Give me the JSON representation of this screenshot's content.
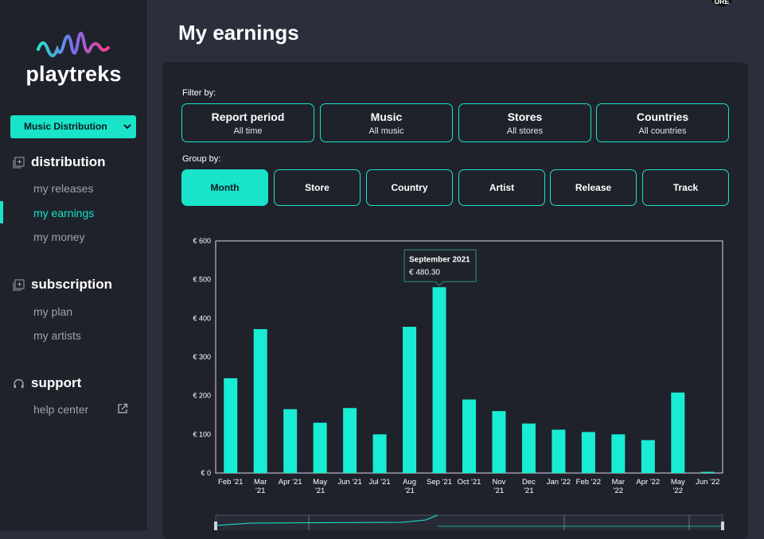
{
  "brand": {
    "name": "playtreks"
  },
  "sidebar": {
    "selector": "Music Distribution",
    "sections": [
      {
        "title": "distribution",
        "items": [
          "my releases",
          "my earnings",
          "my money"
        ]
      },
      {
        "title": "subscription",
        "items": [
          "my plan",
          "my artists"
        ]
      },
      {
        "title": "support",
        "items": [
          "help center"
        ]
      }
    ],
    "active_item": "my earnings"
  },
  "avatar_text": "URE",
  "page": {
    "title": "My earnings",
    "filter_label": "Filter by:",
    "filters": [
      {
        "title": "Report period",
        "value": "All time"
      },
      {
        "title": "Music",
        "value": "All music"
      },
      {
        "title": "Stores",
        "value": "All stores"
      },
      {
        "title": "Countries",
        "value": "All countries"
      }
    ],
    "group_label": "Group by:",
    "groups": [
      "Month",
      "Store",
      "Country",
      "Artist",
      "Release",
      "Track"
    ],
    "active_group": "Month"
  },
  "colors": {
    "accent": "#19e3c9",
    "sidebar_bg": "#1f222b",
    "page_bg": "#2b2f3c"
  },
  "chart_data": {
    "type": "bar",
    "categories": [
      [
        "Feb '21"
      ],
      [
        "Mar",
        "'21"
      ],
      [
        "Apr '21"
      ],
      [
        "May",
        "'21"
      ],
      [
        "Jun '21"
      ],
      [
        "Jul '21"
      ],
      [
        "Aug",
        "'21"
      ],
      [
        "Sep '21"
      ],
      [
        "Oct '21"
      ],
      [
        "Nov",
        "'21"
      ],
      [
        "Dec",
        "'21"
      ],
      [
        "Jan '22"
      ],
      [
        "Feb '22"
      ],
      [
        "Mar",
        "'22"
      ],
      [
        "Apr '22"
      ],
      [
        "May",
        "'22"
      ],
      [
        "Jun '22"
      ]
    ],
    "values": [
      245,
      372,
      165,
      130,
      168,
      100,
      378,
      480.3,
      190,
      160,
      128,
      112,
      106,
      100,
      85,
      208,
      3
    ],
    "yticks": [
      "€ 0",
      "€ 100",
      "€ 200",
      "€ 300",
      "€ 400",
      "€ 500",
      "€ 600"
    ],
    "ylim": [
      0,
      600
    ],
    "tooltip": {
      "title": "September 2021",
      "value": "€ 480.30",
      "index": 7
    }
  }
}
